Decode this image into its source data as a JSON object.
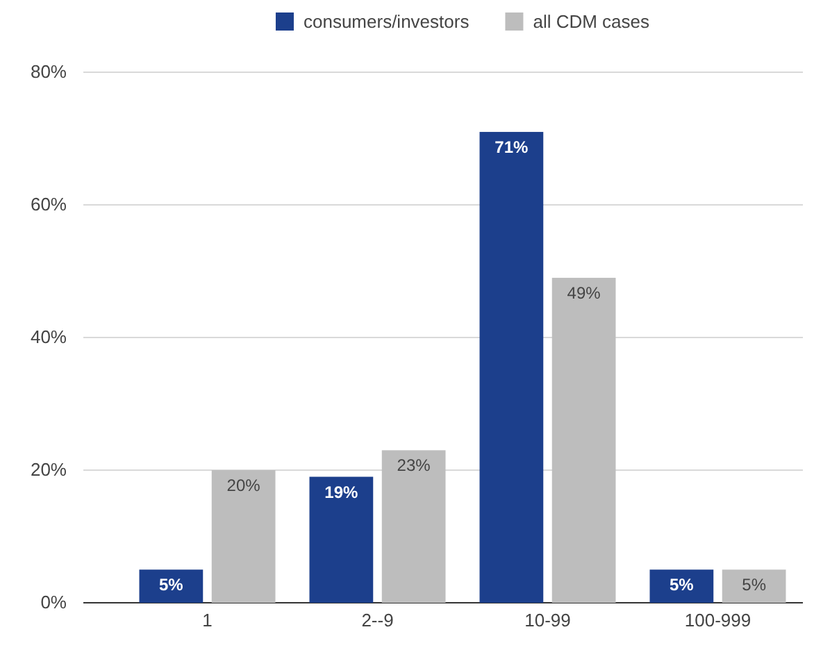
{
  "chart_data": {
    "type": "bar",
    "categories": [
      "1",
      "2--9",
      "10-99",
      "100-999"
    ],
    "series": [
      {
        "name": "consumers/investors",
        "color": "#1c3f8c",
        "values": [
          5,
          19,
          71,
          5
        ],
        "value_labels": [
          "5%",
          "19%",
          "71%",
          "5%"
        ]
      },
      {
        "name": "all CDM cases",
        "color": "#bdbdbd",
        "values": [
          20,
          23,
          49,
          5
        ],
        "value_labels": [
          "20%",
          "23%",
          "49%",
          "5%"
        ]
      }
    ],
    "ylim": [
      0,
      80
    ],
    "yticks": [
      {
        "value": 0,
        "label": "0%"
      },
      {
        "value": 20,
        "label": "20%"
      },
      {
        "value": 40,
        "label": "40%"
      },
      {
        "value": 60,
        "label": "60%"
      },
      {
        "value": 80,
        "label": "80%"
      }
    ],
    "grid": "y",
    "legend": "top"
  }
}
